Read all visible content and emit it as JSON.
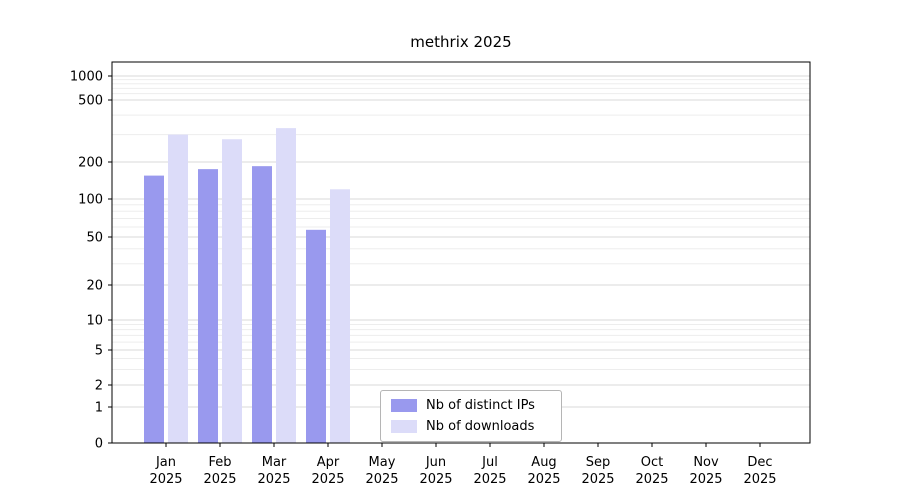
{
  "chart_data": {
    "type": "bar",
    "title": "methrix 2025",
    "categories": [
      "Jan",
      "Feb",
      "Mar",
      "Apr",
      "May",
      "Jun",
      "Jul",
      "Aug",
      "Sep",
      "Oct",
      "Nov",
      "Dec"
    ],
    "year": "2025",
    "series": [
      {
        "name": "Nb of distinct IPs",
        "color": "#9999ee",
        "values": [
          155,
          175,
          185,
          57,
          0,
          0,
          0,
          0,
          0,
          0,
          0,
          0
        ]
      },
      {
        "name": "Nb of downloads",
        "color": "#dcdcf9",
        "values": [
          300,
          280,
          330,
          120,
          0,
          0,
          0,
          0,
          0,
          0,
          0,
          0
        ]
      }
    ],
    "yticks": [
      0,
      1,
      2,
      5,
      10,
      20,
      50,
      100,
      200,
      500,
      1000
    ],
    "yscale": "log-like",
    "ylim": [
      0,
      1000
    ],
    "xlabel": "",
    "ylabel": "",
    "grid": true,
    "legend_position": "lower-center"
  },
  "colors": {
    "grid_major": "#d9d9d9",
    "grid_minor": "#ededed",
    "axis": "#000000",
    "background": "#ffffff"
  }
}
